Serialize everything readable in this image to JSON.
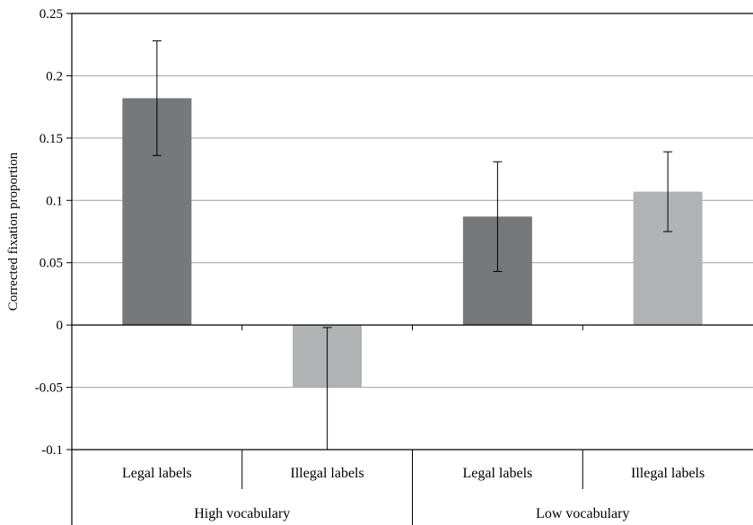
{
  "chart_data": {
    "type": "bar",
    "ylabel": "Corrected fixation proportion",
    "ylim": [
      -0.1,
      0.25
    ],
    "yticks": [
      "-0.1",
      "-0.05",
      "0",
      "0.05",
      "0.1",
      "0.15",
      "0.2",
      "0.25"
    ],
    "ytick_values": [
      -0.1,
      -0.05,
      0,
      0.05,
      0.1,
      0.15,
      0.2,
      0.25
    ],
    "grid": true,
    "groups": [
      "High vocabulary",
      "Low vocabulary"
    ],
    "categories": [
      "Legal labels",
      "Illegal labels",
      "Legal labels",
      "Illegal labels"
    ],
    "values": [
      0.182,
      -0.05,
      0.087,
      0.107
    ],
    "error_low": [
      0.136,
      -0.1,
      0.043,
      0.075
    ],
    "error_high": [
      0.228,
      -0.002,
      0.131,
      0.139
    ],
    "colors": [
      "#77787b",
      "#b1b2b4",
      "#77787b",
      "#b1b2b4"
    ]
  }
}
